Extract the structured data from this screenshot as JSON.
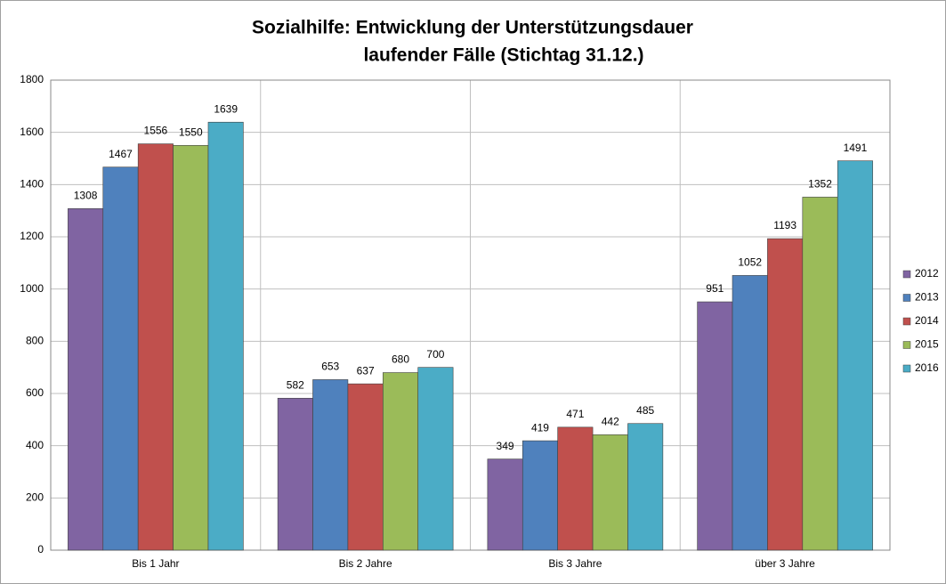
{
  "chart_data": {
    "type": "bar",
    "title": [
      "Sozialhilfe: Entwicklung der Unterstützungsdauer",
      "laufender Fälle (Stichtag 31.12.)"
    ],
    "categories": [
      "Bis 1 Jahr",
      "Bis 2 Jahre",
      "Bis 3 Jahre",
      "über 3 Jahre"
    ],
    "series": [
      {
        "name": "2012",
        "color": "#8064a2",
        "values": [
          1308,
          582,
          349,
          951
        ]
      },
      {
        "name": "2013",
        "color": "#4f81bd",
        "values": [
          1467,
          653,
          419,
          1052
        ]
      },
      {
        "name": "2014",
        "color": "#c0504d",
        "values": [
          1556,
          637,
          471,
          1193
        ]
      },
      {
        "name": "2015",
        "color": "#9bbb59",
        "values": [
          1550,
          680,
          442,
          1352
        ]
      },
      {
        "name": "2016",
        "color": "#4bacc6",
        "values": [
          1639,
          700,
          485,
          1491
        ]
      }
    ],
    "ylim": [
      0,
      1800
    ],
    "yticks": [
      0,
      200,
      400,
      600,
      800,
      1000,
      1200,
      1400,
      1600,
      1800
    ],
    "grid": true,
    "legend": "right"
  }
}
